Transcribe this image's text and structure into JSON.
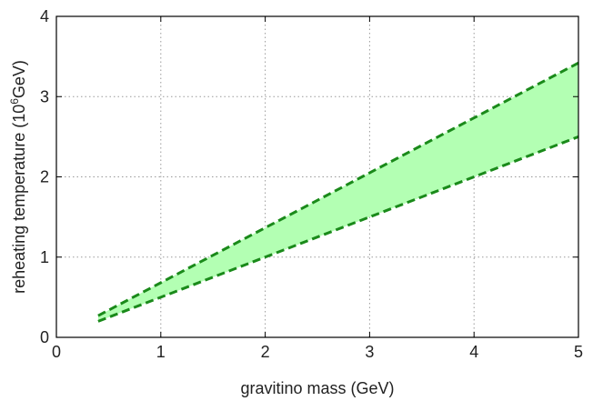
{
  "chart_data": {
    "type": "area",
    "xlabel": "gravitino mass (GeV)",
    "ylabel_parts": {
      "prefix": "reheating temperature (10",
      "exponent": "6",
      "suffix": "GeV)"
    },
    "xlim": [
      0,
      5
    ],
    "ylim": [
      0,
      4
    ],
    "xticks": [
      "0",
      "1",
      "2",
      "3",
      "4",
      "5"
    ],
    "yticks": [
      "0",
      "1",
      "2",
      "3",
      "4"
    ],
    "grid": true,
    "band": {
      "fill_color": "#b3ffb3",
      "line_color": "#1a8a1a",
      "line_style": "dashed",
      "upper": {
        "x": [
          0.4,
          5
        ],
        "y": [
          0.27,
          3.42
        ]
      },
      "lower": {
        "x": [
          0.4,
          5
        ],
        "y": [
          0.2,
          2.5
        ]
      }
    }
  }
}
